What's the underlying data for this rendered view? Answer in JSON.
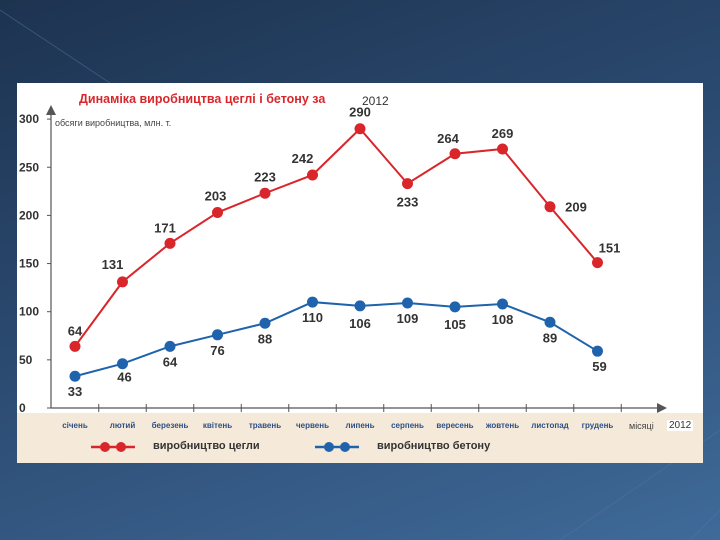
{
  "chart_data": {
    "type": "line",
    "title": "Динаміка виробництва цеглі і бетону за",
    "title_year": "2012",
    "ylabel": "обсяги виробництва, млн. т.",
    "xlabel": "місяці",
    "xlabel_year": "2012",
    "ylim": [
      0,
      300
    ],
    "yticks": [
      0,
      50,
      100,
      150,
      200,
      250,
      300
    ],
    "categories": [
      "січень",
      "лютий",
      "березень",
      "квітень",
      "травень",
      "червень",
      "липень",
      "серпень",
      "вересень",
      "жовтень",
      "листопад",
      "грудень"
    ],
    "grid": false,
    "legend_position": "bottom",
    "series": [
      {
        "name": "виробництво цегли",
        "color": "#d8262b",
        "values": [
          64,
          131,
          171,
          203,
          223,
          242,
          290,
          233,
          264,
          269,
          209,
          151
        ]
      },
      {
        "name": "виробництво бетону",
        "color": "#1f63ad",
        "values": [
          33,
          46,
          64,
          76,
          88,
          110,
          106,
          109,
          105,
          108,
          89,
          59
        ]
      }
    ]
  }
}
